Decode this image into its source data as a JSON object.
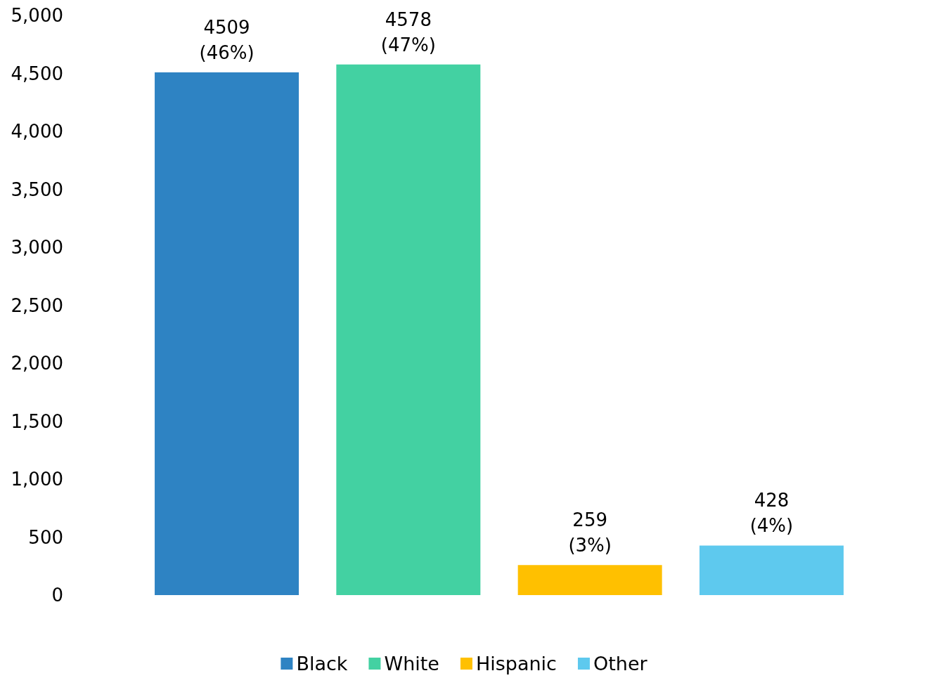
{
  "chart_data": {
    "type": "bar",
    "categories": [
      null
    ],
    "series": [
      {
        "name": "Black",
        "color": "#2e83c3",
        "values": [
          4509
        ],
        "value_labels": [
          "4509\n(46%)"
        ]
      },
      {
        "name": "White",
        "color": "#43d1a2",
        "values": [
          4578
        ],
        "value_labels": [
          "4578\n(47%)"
        ]
      },
      {
        "name": "Hispanic",
        "color": "#ffc000",
        "values": [
          259
        ],
        "value_labels": [
          "259\n(3%)"
        ]
      },
      {
        "name": "Other",
        "color": "#5ec9ee",
        "values": [
          428
        ],
        "value_labels": [
          "428\n(4%)"
        ]
      }
    ],
    "ylim": [
      0,
      5000
    ],
    "yticks": [
      {
        "value": 0,
        "label": "0"
      },
      {
        "value": 500,
        "label": "500"
      },
      {
        "value": 1000,
        "label": "1,000"
      },
      {
        "value": 1500,
        "label": "1,500"
      },
      {
        "value": 2000,
        "label": "2,000"
      },
      {
        "value": 2500,
        "label": "2,500"
      },
      {
        "value": 3000,
        "label": "3,000"
      },
      {
        "value": 3500,
        "label": "3,500"
      },
      {
        "value": 4000,
        "label": "4,000"
      },
      {
        "value": 4500,
        "label": "4,500"
      },
      {
        "value": 5000,
        "label": "5,000"
      }
    ],
    "grid": false,
    "legend": "bottom"
  }
}
